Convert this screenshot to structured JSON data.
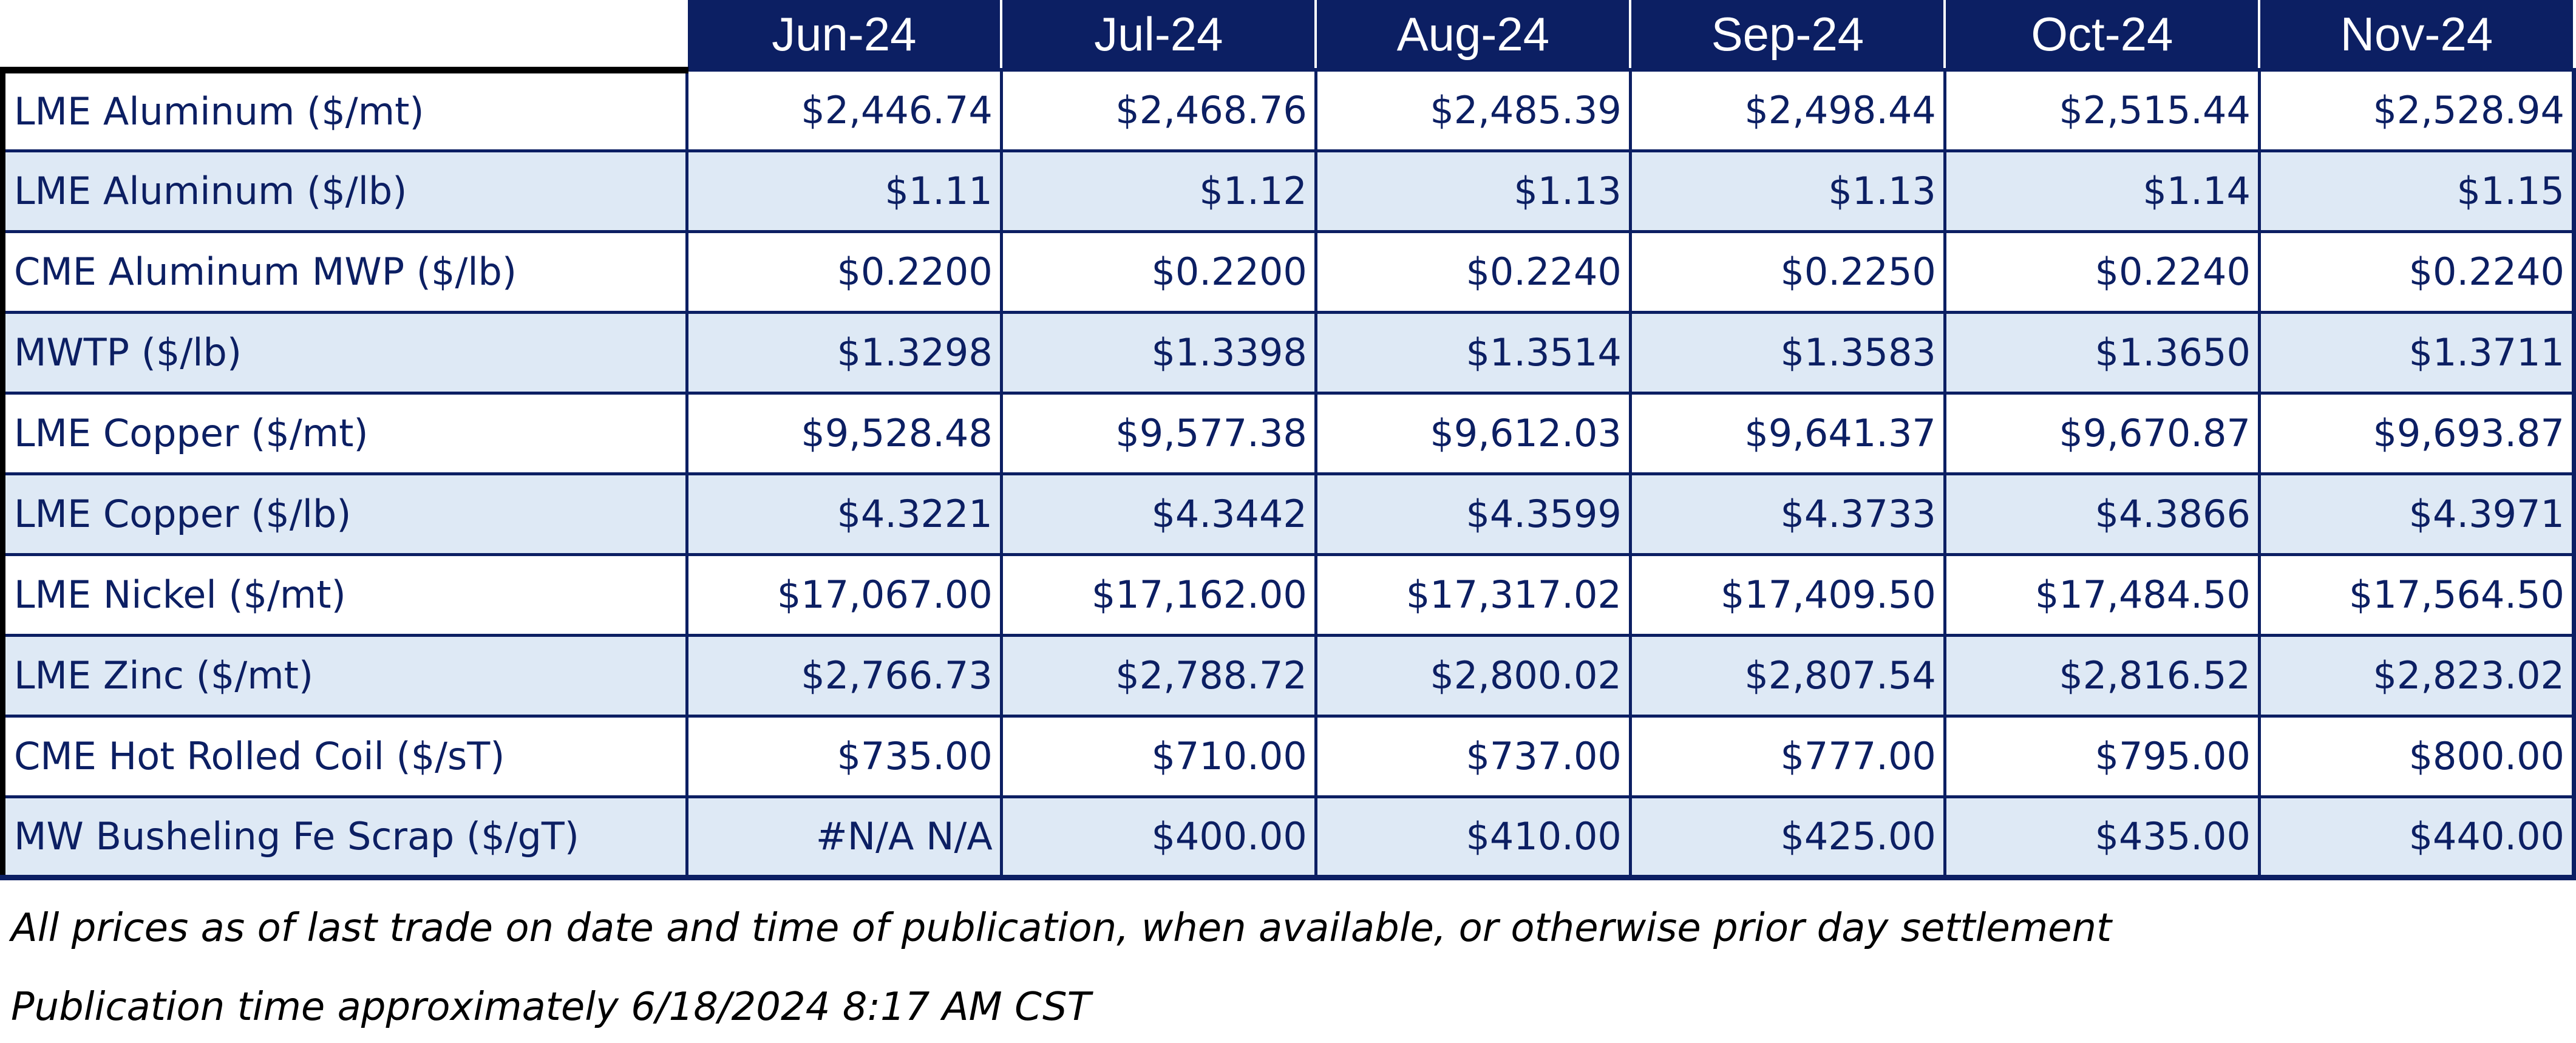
{
  "colors": {
    "header_bg": "#0c1f63",
    "text_navy": "#0c1f63",
    "row_shade": "#dee9f5",
    "row_plain": "#ffffff"
  },
  "table": {
    "months": [
      "Jun-24",
      "Jul-24",
      "Aug-24",
      "Sep-24",
      "Oct-24",
      "Nov-24"
    ],
    "rows": [
      {
        "label": "LME Aluminum ($/mt)",
        "values": [
          "$2,446.74",
          "$2,468.76",
          "$2,485.39",
          "$2,498.44",
          "$2,515.44",
          "$2,528.94"
        ]
      },
      {
        "label": "LME Aluminum ($/lb)",
        "values": [
          "$1.11",
          "$1.12",
          "$1.13",
          "$1.13",
          "$1.14",
          "$1.15"
        ]
      },
      {
        "label": "CME Aluminum MWP ($/lb)",
        "values": [
          "$0.2200",
          "$0.2200",
          "$0.2240",
          "$0.2250",
          "$0.2240",
          "$0.2240"
        ]
      },
      {
        "label": "MWTP ($/lb)",
        "values": [
          "$1.3298",
          "$1.3398",
          "$1.3514",
          "$1.3583",
          "$1.3650",
          "$1.3711"
        ]
      },
      {
        "label": "LME Copper ($/mt)",
        "values": [
          "$9,528.48",
          "$9,577.38",
          "$9,612.03",
          "$9,641.37",
          "$9,670.87",
          "$9,693.87"
        ]
      },
      {
        "label": "LME Copper ($/lb)",
        "values": [
          "$4.3221",
          "$4.3442",
          "$4.3599",
          "$4.3733",
          "$4.3866",
          "$4.3971"
        ]
      },
      {
        "label": "LME Nickel ($/mt)",
        "values": [
          "$17,067.00",
          "$17,162.00",
          "$17,317.02",
          "$17,409.50",
          "$17,484.50",
          "$17,564.50"
        ]
      },
      {
        "label": "LME Zinc ($/mt)",
        "values": [
          "$2,766.73",
          "$2,788.72",
          "$2,800.02",
          "$2,807.54",
          "$2,816.52",
          "$2,823.02"
        ]
      },
      {
        "label": "CME Hot Rolled Coil ($/sT)",
        "values": [
          "$735.00",
          "$710.00",
          "$737.00",
          "$777.00",
          "$795.00",
          "$800.00"
        ]
      },
      {
        "label": "MW Busheling Fe Scrap ($/gT)",
        "values": [
          "#N/A N/A",
          "$400.00",
          "$410.00",
          "$425.00",
          "$435.00",
          "$440.00"
        ]
      }
    ]
  },
  "notes": {
    "disclaimer": "All prices as of last trade on date and time of publication, when available, or otherwise prior day settlement",
    "publication": "Publication time approximately 6/18/2024 8:17 AM CST"
  }
}
